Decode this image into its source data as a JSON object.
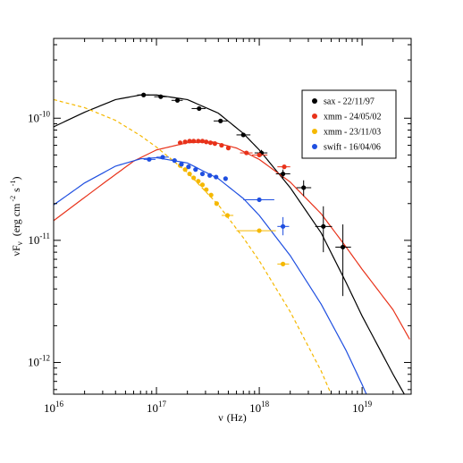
{
  "chart_data": {
    "type": "scatter",
    "xlabel": {
      "base": "ν",
      "unit": "(Hz)"
    },
    "ylabel": {
      "base": "νF",
      "sub": "ν",
      "unit": "(erg cm",
      "sup1": "-2",
      "mid": "s",
      "sup2": "-1",
      "close": ")"
    },
    "x_scale": "log",
    "y_scale": "log",
    "xlim": [
      1e+16,
      3e+19
    ],
    "ylim": [
      5.5e-13,
      4.5e-10
    ],
    "x_ticks": [
      {
        "value": 1e+16,
        "base": "10",
        "exp": "16"
      },
      {
        "value": 1e+17,
        "base": "10",
        "exp": "17"
      },
      {
        "value": 1e+18,
        "base": "10",
        "exp": "18"
      },
      {
        "value": 1e+19,
        "base": "10",
        "exp": "19"
      }
    ],
    "y_ticks": [
      {
        "value": 1e-12,
        "base": "10",
        "exp": "-12"
      },
      {
        "value": 1e-11,
        "base": "10",
        "exp": "-11"
      },
      {
        "value": 1e-10,
        "base": "10",
        "exp": "-10"
      }
    ],
    "legend_position": "top-right",
    "grid": false,
    "series": [
      {
        "name": "sax - 22/11/97",
        "color": "#000000",
        "curve_style": "solid",
        "points": [
          {
            "x": 7.5e+16,
            "y": 1.55e-10,
            "xerr": [
              6.5e+16,
              8.6e+16
            ],
            "yerr": [
              1.52e-10,
              1.58e-10
            ]
          },
          {
            "x": 1.1e+17,
            "y": 1.5e-10,
            "xerr": [
              9.5e+16,
              1.27e+17
            ],
            "yerr": [
              1.47e-10,
              1.53e-10
            ]
          },
          {
            "x": 1.6e+17,
            "y": 1.4e-10,
            "xerr": [
              1.4e+17,
              1.8e+17
            ],
            "yerr": [
              1.37e-10,
              1.43e-10
            ]
          },
          {
            "x": 2.6e+17,
            "y": 1.2e-10,
            "xerr": [
              2.2e+17,
              3e+17
            ],
            "yerr": [
              1.17e-10,
              1.23e-10
            ]
          },
          {
            "x": 4.2e+17,
            "y": 9.5e-11,
            "xerr": [
              3.6e+17,
              4.9e+17
            ],
            "yerr": [
              9.2e-11,
              9.8e-11
            ]
          },
          {
            "x": 7e+17,
            "y": 7.3e-11,
            "xerr": [
              6e+17,
              8.2e+17
            ],
            "yerr": [
              7e-11,
              7.6e-11
            ]
          },
          {
            "x": 1.05e+18,
            "y": 5.2e-11,
            "xerr": [
              9e+17,
              1.2e+18
            ],
            "yerr": [
              4.9e-11,
              5.5e-11
            ]
          },
          {
            "x": 1.7e+18,
            "y": 3.5e-11,
            "xerr": [
              1.45e+18,
              2e+18
            ],
            "yerr": [
              3.2e-11,
              3.8e-11
            ]
          },
          {
            "x": 2.7e+18,
            "y": 2.7e-11,
            "xerr": [
              2.3e+18,
              3.2e+18
            ],
            "yerr": [
              2.3e-11,
              3.1e-11
            ]
          },
          {
            "x": 4.2e+18,
            "y": 1.3e-11,
            "xerr": [
              3.5e+18,
              5.1e+18
            ],
            "yerr": [
              8e-12,
              1.9e-11
            ]
          },
          {
            "x": 6.5e+18,
            "y": 8.8e-12,
            "xerr": [
              5.5e+18,
              7.8e+18
            ],
            "yerr": [
              3.5e-12,
              1.35e-11
            ]
          }
        ],
        "curve": [
          [
            1e+16,
            8.5e-11
          ],
          [
            2e+16,
            1.12e-10
          ],
          [
            4e+16,
            1.42e-10
          ],
          [
            7e+16,
            1.55e-10
          ],
          [
            1e+17,
            1.55e-10
          ],
          [
            2e+17,
            1.42e-10
          ],
          [
            4e+17,
            1.1e-10
          ],
          [
            7e+17,
            7.5e-11
          ],
          [
            1e+18,
            5.5e-11
          ],
          [
            2e+18,
            2.7e-11
          ],
          [
            4e+18,
            1.15e-11
          ],
          [
            7e+18,
            4.5e-12
          ],
          [
            1e+19,
            2.4e-12
          ],
          [
            2e+19,
            8e-13
          ],
          [
            2.9e+19,
            4.6e-13
          ]
        ]
      },
      {
        "name": "xmm - 24/05/02",
        "color": "#e8321a",
        "curve_style": "solid",
        "points": [
          {
            "x": 1.7e+17,
            "y": 6.3e-11
          },
          {
            "x": 1.9e+17,
            "y": 6.4e-11
          },
          {
            "x": 2.1e+17,
            "y": 6.5e-11
          },
          {
            "x": 2.3e+17,
            "y": 6.5e-11
          },
          {
            "x": 2.55e+17,
            "y": 6.5e-11
          },
          {
            "x": 2.8e+17,
            "y": 6.5e-11
          },
          {
            "x": 3.05e+17,
            "y": 6.4e-11
          },
          {
            "x": 3.35e+17,
            "y": 6.3e-11
          },
          {
            "x": 3.7e+17,
            "y": 6.2e-11
          },
          {
            "x": 4.3e+17,
            "y": 6e-11
          },
          {
            "x": 5e+17,
            "y": 5.7e-11
          },
          {
            "x": 7.5e+17,
            "y": 5.2e-11,
            "xerr": [
              6.5e+17,
              8.6e+17
            ]
          },
          {
            "x": 1e+18,
            "y": 5e-11,
            "xerr": [
              8.5e+17,
              1.2e+18
            ]
          },
          {
            "x": 1.75e+18,
            "y": 4e-11,
            "xerr": [
              1.5e+18,
              2e+18
            ]
          }
        ],
        "curve": [
          [
            1e+16,
            1.45e-11
          ],
          [
            3e+16,
            2.9e-11
          ],
          [
            6e+16,
            4.45e-11
          ],
          [
            1e+17,
            5.5e-11
          ],
          [
            2e+17,
            6.3e-11
          ],
          [
            3.5e+17,
            6.4e-11
          ],
          [
            6e+17,
            5.7e-11
          ],
          [
            1e+18,
            4.6e-11
          ],
          [
            2e+18,
            3e-11
          ],
          [
            4e+18,
            1.65e-11
          ],
          [
            7e+18,
            8.8e-12
          ],
          [
            1e+19,
            5.8e-12
          ],
          [
            2e+19,
            2.7e-12
          ],
          [
            2.9e+19,
            1.55e-12
          ]
        ]
      },
      {
        "name": "xmm - 23/11/03",
        "color": "#f5b800",
        "curve_style": "dashed",
        "points": [
          {
            "x": 1.7e+17,
            "y": 4.1e-11
          },
          {
            "x": 1.9e+17,
            "y": 3.8e-11
          },
          {
            "x": 2.1e+17,
            "y": 3.5e-11
          },
          {
            "x": 2.3e+17,
            "y": 3.25e-11
          },
          {
            "x": 2.55e+17,
            "y": 3.05e-11
          },
          {
            "x": 2.8e+17,
            "y": 2.85e-11
          },
          {
            "x": 3.05e+17,
            "y": 2.6e-11
          },
          {
            "x": 3.4e+17,
            "y": 2.35e-11
          },
          {
            "x": 3.85e+17,
            "y": 2e-11
          },
          {
            "x": 4.9e+17,
            "y": 1.6e-11,
            "xerr": [
              4.3e+17,
              5.6e+17
            ]
          },
          {
            "x": 1e+18,
            "y": 1.2e-11,
            "xerr": [
              6e+17,
              1.45e+18
            ]
          },
          {
            "x": 1.7e+18,
            "y": 6.4e-12,
            "xerr": [
              1.5e+18,
              1.95e+18
            ]
          }
        ],
        "curve": [
          [
            1e+16,
            1.42e-10
          ],
          [
            2e+16,
            1.22e-10
          ],
          [
            4e+16,
            9.6e-11
          ],
          [
            7e+16,
            7.2e-11
          ],
          [
            1e+17,
            5.8e-11
          ],
          [
            2e+17,
            3.6e-11
          ],
          [
            4e+17,
            1.95e-11
          ],
          [
            7e+17,
            1.05e-11
          ],
          [
            1e+18,
            6.8e-12
          ],
          [
            2e+18,
            2.6e-12
          ],
          [
            4e+18,
            8.5e-13
          ],
          [
            5e+18,
            5.5e-13
          ]
        ]
      },
      {
        "name": "swift - 16/04/06",
        "color": "#1f4fe0",
        "curve_style": "solid",
        "points": [
          {
            "x": 8.5e+16,
            "y": 4.6e-11,
            "xerr": [
              7.5e+16,
              9.8e+16
            ]
          },
          {
            "x": 1.15e+17,
            "y": 4.8e-11,
            "xerr": [
              1e+17,
              1.32e+17
            ]
          },
          {
            "x": 1.5e+17,
            "y": 4.5e-11
          },
          {
            "x": 1.75e+17,
            "y": 4.2e-11
          },
          {
            "x": 2.05e+17,
            "y": 4e-11
          },
          {
            "x": 2.4e+17,
            "y": 3.8e-11
          },
          {
            "x": 2.8e+17,
            "y": 3.5e-11
          },
          {
            "x": 3.3e+17,
            "y": 3.4e-11
          },
          {
            "x": 3.8e+17,
            "y": 3.3e-11
          },
          {
            "x": 4.7e+17,
            "y": 3.2e-11
          },
          {
            "x": 1e+18,
            "y": 2.15e-11,
            "xerr": [
              7e+17,
              1.4e+18
            ]
          },
          {
            "x": 1.7e+18,
            "y": 1.3e-11,
            "xerr": [
              1.5e+18,
              1.95e+18
            ],
            "yerr": [
              1.1e-11,
              1.55e-11
            ]
          }
        ],
        "curve": [
          [
            1e+16,
            1.95e-11
          ],
          [
            2e+16,
            2.95e-11
          ],
          [
            4e+16,
            4.05e-11
          ],
          [
            7e+16,
            4.65e-11
          ],
          [
            1e+17,
            4.75e-11
          ],
          [
            2e+17,
            4.3e-11
          ],
          [
            4e+17,
            3.2e-11
          ],
          [
            7e+17,
            2.2e-11
          ],
          [
            1e+18,
            1.6e-11
          ],
          [
            2e+18,
            7.5e-12
          ],
          [
            4e+18,
            3e-12
          ],
          [
            7e+18,
            1.25e-12
          ],
          [
            1e+19,
            6.6e-13
          ],
          [
            1.1e+19,
            5.5e-13
          ]
        ]
      }
    ]
  }
}
